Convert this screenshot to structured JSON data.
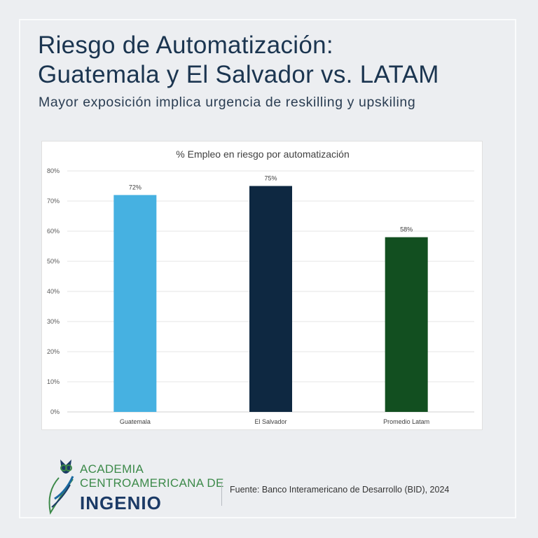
{
  "header": {
    "title_line1": "Riesgo de Automatización:",
    "title_line2": "Guatemala y El Salvador vs. LATAM",
    "subtitle": "Mayor exposición implica urgencia de reskilling y upskiling"
  },
  "chart_data": {
    "type": "bar",
    "title": "% Empleo en riesgo por automatización",
    "categories": [
      "Guatemala",
      "El Salvador",
      "Promedio Latam"
    ],
    "values": [
      72,
      75,
      58
    ],
    "data_labels": [
      "72%",
      "75%",
      "58%"
    ],
    "colors": [
      "#46b1e1",
      "#0e2841",
      "#124f20"
    ],
    "ylim": [
      0,
      80
    ],
    "yticks": [
      "0%",
      "10%",
      "20%",
      "30%",
      "40%",
      "50%",
      "60%",
      "70%",
      "80%"
    ],
    "grid": true,
    "xlabel": "",
    "ylabel": ""
  },
  "logo": {
    "line1": "ACADEMIA",
    "line2": "CENTROAMERICANA DE",
    "line3": "INGENIO"
  },
  "footer": {
    "source": "Fuente: Banco Interamericano de Desarrollo (BID), 2024"
  }
}
